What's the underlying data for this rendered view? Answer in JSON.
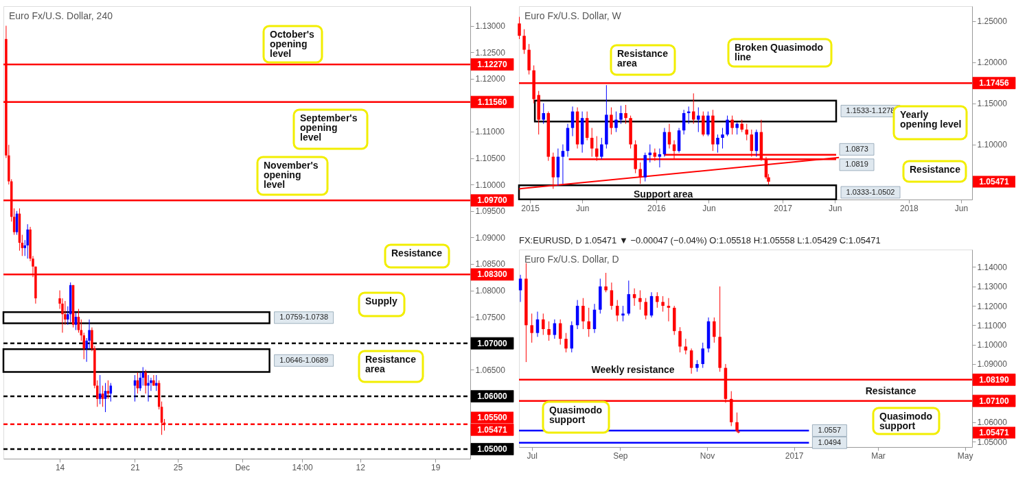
{
  "chart_data": [
    {
      "type": "candlestick",
      "title": "Euro Fx/U.S. Dollar, 240",
      "x": [
        "2016-11-09T00:00",
        "2016-11-09T06:00",
        "2016-11-09T12:00",
        "2016-11-09T18:00",
        "2016-11-10T00:00",
        "2016-11-10T06:00",
        "2016-11-10T12:00",
        "2016-11-10T18:00",
        "2016-11-11T00:00",
        "2016-11-11T06:00",
        "2016-11-11T12:00",
        "2016-11-11T18:00",
        "2016-11-14T00:00",
        "2016-11-14T06:00",
        "2016-11-14T12:00",
        "2016-11-14T18:00",
        "2016-11-15T00:00",
        "2016-11-15T06:00",
        "2016-11-15T12:00",
        "2016-11-15T18:00",
        "2016-11-16T00:00",
        "2016-11-16T06:00",
        "2016-11-16T12:00",
        "2016-11-16T18:00",
        "2016-11-17T00:00",
        "2016-11-17T06:00",
        "2016-11-17T12:00",
        "2016-11-17T18:00",
        "2016-11-18T00:00",
        "2016-11-18T06:00",
        "2016-11-18T12:00",
        "2016-11-18T18:00",
        "2016-11-21T00:00",
        "2016-11-21T06:00",
        "2016-11-21T12:00",
        "2016-11-21T18:00",
        "2016-11-22T00:00",
        "2016-11-22T06:00",
        "2016-11-22T12:00",
        "2016-11-22T18:00",
        "2016-11-23T00:00",
        "2016-11-23T06:00",
        "2016-11-23T12:00",
        "2016-11-23T18:00"
      ],
      "ohlc": [
        [
          1.1275,
          1.13,
          1.105,
          1.1055
        ],
        [
          1.1055,
          1.1075,
          1.1,
          1.1006
        ],
        [
          1.1006,
          1.101,
          1.093,
          1.0939
        ],
        [
          1.0939,
          1.0955,
          1.0905,
          1.091
        ],
        [
          1.091,
          1.095,
          1.0905,
          1.0945
        ],
        [
          1.0945,
          1.0955,
          1.0875,
          1.089
        ],
        [
          1.089,
          1.0905,
          1.0865,
          1.088
        ],
        [
          1.088,
          1.0895,
          1.0865,
          1.0885
        ],
        [
          1.0885,
          1.0925,
          1.086,
          1.0915
        ],
        [
          1.0915,
          1.092,
          1.0855,
          1.086
        ],
        [
          1.086,
          1.0865,
          1.0825,
          1.0845
        ],
        [
          1.0845,
          1.0845,
          1.0775,
          1.0785
        ],
        [
          1.0785,
          1.08,
          1.0765,
          1.0775
        ],
        [
          1.0775,
          1.0785,
          1.072,
          1.0755
        ],
        [
          1.0755,
          1.078,
          1.0735,
          1.0745
        ],
        [
          1.0745,
          1.077,
          1.0735,
          1.0755
        ],
        [
          1.0755,
          1.0815,
          1.074,
          1.081
        ],
        [
          1.081,
          1.081,
          1.073,
          1.0735
        ],
        [
          1.0735,
          1.0758,
          1.0725,
          1.075
        ],
        [
          1.075,
          1.0765,
          1.072,
          1.0725
        ],
        [
          1.0725,
          1.0745,
          1.0705,
          1.0715
        ],
        [
          1.0715,
          1.072,
          1.067,
          1.069
        ],
        [
          1.069,
          1.071,
          1.0665,
          1.0705
        ],
        [
          1.0705,
          1.0745,
          1.069,
          1.0725
        ],
        [
          1.0725,
          1.073,
          1.0685,
          1.069
        ],
        [
          1.069,
          1.0695,
          1.0615,
          1.062
        ],
        [
          1.062,
          1.063,
          1.058,
          1.0595
        ],
        [
          1.0595,
          1.064,
          1.0585,
          1.0605
        ],
        [
          1.0605,
          1.062,
          1.058,
          1.0595
        ],
        [
          1.0595,
          1.0625,
          1.057,
          1.061
        ],
        [
          1.061,
          1.063,
          1.0595,
          1.0605
        ],
        [
          1.0605,
          1.0625,
          1.059,
          1.062
        ],
        [
          1.062,
          1.064,
          1.059,
          1.063
        ],
        [
          1.063,
          1.0645,
          1.0605,
          1.0615
        ],
        [
          1.0615,
          1.0645,
          1.061,
          1.0635
        ],
        [
          1.0635,
          1.0655,
          1.062,
          1.0645
        ],
        [
          1.0645,
          1.065,
          1.0605,
          1.062
        ],
        [
          1.062,
          1.064,
          1.059,
          1.0625
        ],
        [
          1.0625,
          1.0635,
          1.061,
          1.063
        ],
        [
          1.063,
          1.064,
          1.062,
          1.062
        ],
        [
          1.062,
          1.064,
          1.061,
          1.0625
        ],
        [
          1.0625,
          1.063,
          1.0575,
          1.058
        ],
        [
          1.058,
          1.059,
          1.0527,
          1.055
        ],
        [
          1.055,
          1.0557,
          1.0535,
          1.0547
        ]
      ],
      "xlim": [
        "2016-11-08T18:00",
        "2016-12-22T06:00"
      ],
      "ylim": [
        1.0482,
        1.1337
      ],
      "xticks": [
        {
          "value": "2016-11-14",
          "label": "14"
        },
        {
          "value": "2016-11-21",
          "label": "21"
        },
        {
          "value": "2016-11-25",
          "label": "25"
        },
        {
          "value": "2016-12-01",
          "label": "Dec"
        },
        {
          "value": "2016-12-06T14:00",
          "label": "14:00"
        },
        {
          "value": "2016-12-12",
          "label": "12"
        },
        {
          "value": "2016-12-19",
          "label": "19"
        }
      ],
      "yticks": [
        {
          "value": 1.13,
          "label": "1.13000"
        },
        {
          "value": 1.125,
          "label": "1.12500"
        },
        {
          "value": 1.12,
          "label": "1.12000"
        },
        {
          "value": 1.11,
          "label": "1.11000"
        },
        {
          "value": 1.105,
          "label": "1.10500"
        },
        {
          "value": 1.1,
          "label": "1.10000"
        },
        {
          "value": 1.095,
          "label": "1.09500"
        },
        {
          "value": 1.09,
          "label": "1.09000"
        },
        {
          "value": 1.085,
          "label": "1.08500"
        },
        {
          "value": 1.08,
          "label": "1.08000"
        },
        {
          "value": 1.075,
          "label": "1.07500"
        },
        {
          "value": 1.065,
          "label": "1.06500"
        }
      ],
      "ref_lines": [
        {
          "axis": "y",
          "value": 1.1227,
          "label": "1.12270",
          "color": "#ff0000",
          "line_style": "solid"
        },
        {
          "axis": "y",
          "value": 1.1156,
          "label": "1.11560",
          "color": "#ff0000",
          "line_style": "solid"
        },
        {
          "axis": "y",
          "value": 1.097,
          "label": "1.09700",
          "color": "#ff0000",
          "line_style": "solid"
        },
        {
          "axis": "y",
          "value": 1.083,
          "label": "1.08300",
          "color": "#ff0000",
          "line_style": "solid"
        },
        {
          "axis": "y",
          "value": 1.07,
          "label": "1.07000",
          "color": "#000000",
          "line_style": "dashed"
        },
        {
          "axis": "y",
          "value": 1.06,
          "label": "1.06000",
          "color": "#000000",
          "line_style": "dashed"
        },
        {
          "axis": "y",
          "value": 1.05471,
          "label": "1.05471",
          "color": "#ff0000",
          "line_style": "dashed"
        },
        {
          "axis": "y",
          "value": 1.05,
          "label": "1.05000",
          "color": "#000000",
          "line_style": "dashed"
        }
      ],
      "bands": [
        {
          "axis": "y",
          "from": 1.0738,
          "to": 1.0759,
          "label": "1.0759-1.0738",
          "color": "#000000"
        },
        {
          "axis": "y",
          "from": 1.0646,
          "to": 1.0689,
          "label": "1.0646-1.0689",
          "color": "#000000"
        }
      ],
      "annotations": [
        "October's opening level",
        "September's opening level",
        "November's opening level",
        "Resistance",
        "Supply",
        "Resistance area",
        "1.05500"
      ]
    },
    {
      "type": "candlestick",
      "title": "Euro Fx/U.S. Dollar, W",
      "x": [
        "2014-12-01",
        "2014-12-15",
        "2014-12-29",
        "2015-01-12",
        "2015-01-26",
        "2015-02-09",
        "2015-02-23",
        "2015-03-09",
        "2015-03-23",
        "2015-04-06",
        "2015-04-20",
        "2015-05-04",
        "2015-05-18",
        "2015-06-01",
        "2015-06-15",
        "2015-06-29",
        "2015-07-13",
        "2015-07-27",
        "2015-08-10",
        "2015-08-24",
        "2015-09-07",
        "2015-09-21",
        "2015-10-05",
        "2015-10-19",
        "2015-11-02",
        "2015-11-16",
        "2015-11-30",
        "2015-12-14",
        "2015-12-28",
        "2016-01-11",
        "2016-01-25",
        "2016-02-08",
        "2016-02-22",
        "2016-03-07",
        "2016-03-21",
        "2016-04-04",
        "2016-04-18",
        "2016-05-02",
        "2016-05-16",
        "2016-05-30",
        "2016-06-13",
        "2016-06-27",
        "2016-07-11",
        "2016-07-25",
        "2016-08-08",
        "2016-08-22",
        "2016-09-05",
        "2016-09-19",
        "2016-10-03",
        "2016-10-17",
        "2016-10-31",
        "2016-11-14",
        "2016-11-21"
      ],
      "ohlc": [
        [
          1.247,
          1.255,
          1.228,
          1.232
        ],
        [
          1.232,
          1.24,
          1.21,
          1.215
        ],
        [
          1.215,
          1.222,
          1.185,
          1.19
        ],
        [
          1.19,
          1.196,
          1.15,
          1.155
        ],
        [
          1.16,
          1.165,
          1.112,
          1.13
        ],
        [
          1.13,
          1.15,
          1.125,
          1.138
        ],
        [
          1.138,
          1.14,
          1.08,
          1.085
        ],
        [
          1.085,
          1.09,
          1.046,
          1.06
        ],
        [
          1.06,
          1.095,
          1.05,
          1.085
        ],
        [
          1.085,
          1.1,
          1.052,
          1.092
        ],
        [
          1.092,
          1.125,
          1.085,
          1.12
        ],
        [
          1.12,
          1.146,
          1.11,
          1.14
        ],
        [
          1.14,
          1.145,
          1.095,
          1.1
        ],
        [
          1.1,
          1.14,
          1.09,
          1.132
        ],
        [
          1.132,
          1.14,
          1.105,
          1.108
        ],
        [
          1.108,
          1.12,
          1.085,
          1.095
        ],
        [
          1.095,
          1.11,
          1.08,
          1.085
        ],
        [
          1.085,
          1.108,
          1.082,
          1.1
        ],
        [
          1.1,
          1.172,
          1.095,
          1.136
        ],
        [
          1.136,
          1.145,
          1.112,
          1.12
        ],
        [
          1.12,
          1.14,
          1.115,
          1.13
        ],
        [
          1.13,
          1.147,
          1.125,
          1.138
        ],
        [
          1.138,
          1.148,
          1.125,
          1.132
        ],
        [
          1.132,
          1.135,
          1.095,
          1.1
        ],
        [
          1.1,
          1.105,
          1.065,
          1.07
        ],
        [
          1.07,
          1.078,
          1.052,
          1.06
        ],
        [
          1.06,
          1.09,
          1.055,
          1.087
        ],
        [
          1.087,
          1.1,
          1.078,
          1.09
        ],
        [
          1.09,
          1.095,
          1.08,
          1.085
        ],
        [
          1.085,
          1.095,
          1.072,
          1.088
        ],
        [
          1.088,
          1.12,
          1.085,
          1.115
        ],
        [
          1.115,
          1.125,
          1.095,
          1.1
        ],
        [
          1.1,
          1.105,
          1.082,
          1.092
        ],
        [
          1.092,
          1.12,
          1.09,
          1.117
        ],
        [
          1.117,
          1.142,
          1.112,
          1.138
        ],
        [
          1.138,
          1.146,
          1.125,
          1.14
        ],
        [
          1.14,
          1.162,
          1.125,
          1.13
        ],
        [
          1.13,
          1.145,
          1.115,
          1.135
        ],
        [
          1.135,
          1.14,
          1.11,
          1.112
        ],
        [
          1.112,
          1.14,
          1.11,
          1.135
        ],
        [
          1.135,
          1.142,
          1.092,
          1.1
        ],
        [
          1.1,
          1.112,
          1.09,
          1.108
        ],
        [
          1.108,
          1.12,
          1.095,
          1.112
        ],
        [
          1.112,
          1.135,
          1.11,
          1.13
        ],
        [
          1.13,
          1.135,
          1.112,
          1.12
        ],
        [
          1.12,
          1.127,
          1.112,
          1.125
        ],
        [
          1.125,
          1.13,
          1.115,
          1.118
        ],
        [
          1.118,
          1.125,
          1.105,
          1.112
        ],
        [
          1.112,
          1.118,
          1.085,
          1.092
        ],
        [
          1.092,
          1.118,
          1.085,
          1.115
        ],
        [
          1.115,
          1.13,
          1.08,
          1.083
        ],
        [
          1.083,
          1.085,
          1.058,
          1.06
        ],
        [
          1.06,
          1.064,
          1.051,
          1.0547
        ]
      ],
      "xlim": [
        "2014-11-30",
        "2018-07-03"
      ],
      "ylim": [
        1.033,
        1.268
      ],
      "xticks": [
        {
          "value": "2015-01-01",
          "label": "2015"
        },
        {
          "value": "2015-06-01",
          "label": "Jun"
        },
        {
          "value": "2016-01-01",
          "label": "2016"
        },
        {
          "value": "2016-06-01",
          "label": "Jun"
        },
        {
          "value": "2017-01-01",
          "label": "2017"
        },
        {
          "value": "2017-06-01",
          "label": "Jun"
        },
        {
          "value": "2018-01-01",
          "label": "2018"
        },
        {
          "value": "2018-06-01",
          "label": "Jun"
        }
      ],
      "yticks": [
        {
          "value": 1.1,
          "label": "1.10000"
        },
        {
          "value": 1.15,
          "label": "1.15000"
        },
        {
          "value": 1.2,
          "label": "1.20000"
        },
        {
          "value": 1.25,
          "label": "1.25000"
        }
      ],
      "series": [
        {
          "type": "line",
          "color": "#ff0000",
          "x": [
            "2014-11-30",
            "2017-06-13"
          ],
          "values": [
            1.046,
            1.084
          ]
        }
      ],
      "ref_lines": [
        {
          "axis": "y",
          "value": 1.17456,
          "label": "1.17456",
          "color": "#ff0000",
          "line_style": "solid"
        },
        {
          "axis": "y",
          "value": 1.0873,
          "label": "1.0873",
          "color": "#ff0000",
          "line_style": "solid"
        },
        {
          "axis": "y",
          "value": 1.0819,
          "label": "1.0819",
          "color": "#ff0000",
          "line_style": "solid"
        }
      ],
      "bands": [
        {
          "axis": "y",
          "from": 1.1278,
          "to": 1.1533,
          "label": "1.1533-1.1278",
          "color": "#000000"
        },
        {
          "axis": "y",
          "from": 1.0333,
          "to": 1.0502,
          "label": "1.0333-1.0502",
          "color": "#000000"
        }
      ],
      "annotations": [
        "Resistance area",
        "Broken Quasimodo line",
        "Yearly opening level",
        "Resistance",
        "Support area",
        "1.05471"
      ]
    },
    {
      "type": "candlestick",
      "title": "Euro Fx/U.S. Dollar, D",
      "subtitle": "FX:EURUSD, D  1.05471 ▼ −0.00047 (−0.04%)  O:1.05518  H:1.05558  L:1.05429  C:1.05471",
      "x": [
        "2016-06-23",
        "2016-06-27",
        "2016-07-01",
        "2016-07-05",
        "2016-07-09",
        "2016-07-13",
        "2016-07-17",
        "2016-07-21",
        "2016-07-25",
        "2016-07-29",
        "2016-08-02",
        "2016-08-06",
        "2016-08-10",
        "2016-08-14",
        "2016-08-18",
        "2016-08-22",
        "2016-08-26",
        "2016-08-30",
        "2016-09-03",
        "2016-09-07",
        "2016-09-11",
        "2016-09-15",
        "2016-09-19",
        "2016-09-23",
        "2016-09-27",
        "2016-10-01",
        "2016-10-05",
        "2016-10-09",
        "2016-10-13",
        "2016-10-17",
        "2016-10-21",
        "2016-10-25",
        "2016-10-29",
        "2016-11-02",
        "2016-11-06",
        "2016-11-10",
        "2016-11-14",
        "2016-11-18",
        "2016-11-22",
        "2016-11-23"
      ],
      "ohlc": [
        [
          1.128,
          1.136,
          1.122,
          1.134
        ],
        [
          1.134,
          1.142,
          1.091,
          1.11
        ],
        [
          1.11,
          1.116,
          1.101,
          1.106
        ],
        [
          1.106,
          1.117,
          1.104,
          1.113
        ],
        [
          1.113,
          1.116,
          1.105,
          1.108
        ],
        [
          1.108,
          1.112,
          1.102,
          1.105
        ],
        [
          1.105,
          1.113,
          1.103,
          1.111
        ],
        [
          1.111,
          1.113,
          1.1,
          1.103
        ],
        [
          1.103,
          1.106,
          1.096,
          1.098
        ],
        [
          1.098,
          1.112,
          1.096,
          1.11
        ],
        [
          1.11,
          1.123,
          1.108,
          1.12
        ],
        [
          1.12,
          1.124,
          1.108,
          1.112
        ],
        [
          1.112,
          1.119,
          1.104,
          1.108
        ],
        [
          1.108,
          1.121,
          1.106,
          1.118
        ],
        [
          1.118,
          1.134,
          1.116,
          1.13
        ],
        [
          1.13,
          1.137,
          1.127,
          1.128
        ],
        [
          1.128,
          1.132,
          1.118,
          1.12
        ],
        [
          1.12,
          1.123,
          1.112,
          1.115
        ],
        [
          1.115,
          1.12,
          1.112,
          1.116
        ],
        [
          1.116,
          1.133,
          1.115,
          1.126
        ],
        [
          1.126,
          1.129,
          1.12,
          1.124
        ],
        [
          1.124,
          1.128,
          1.118,
          1.122
        ],
        [
          1.122,
          1.124,
          1.113,
          1.115
        ],
        [
          1.115,
          1.127,
          1.114,
          1.125
        ],
        [
          1.125,
          1.127,
          1.119,
          1.122
        ],
        [
          1.122,
          1.125,
          1.117,
          1.12
        ],
        [
          1.12,
          1.124,
          1.112,
          1.119
        ],
        [
          1.119,
          1.12,
          1.105,
          1.107
        ],
        [
          1.107,
          1.109,
          1.096,
          1.099
        ],
        [
          1.099,
          1.103,
          1.095,
          1.097
        ],
        [
          1.097,
          1.098,
          1.085,
          1.088
        ],
        [
          1.088,
          1.092,
          1.086,
          1.09
        ],
        [
          1.09,
          1.101,
          1.088,
          1.098
        ],
        [
          1.098,
          1.114,
          1.096,
          1.112
        ],
        [
          1.112,
          1.114,
          1.101,
          1.104
        ],
        [
          1.104,
          1.13,
          1.086,
          1.088
        ],
        [
          1.088,
          1.09,
          1.07,
          1.072
        ],
        [
          1.072,
          1.076,
          1.058,
          1.06
        ],
        [
          1.06,
          1.065,
          1.055,
          1.0555
        ],
        [
          1.05518,
          1.05558,
          1.05429,
          1.05471
        ]
      ],
      "xlim": [
        "2016-06-22",
        "2017-05-06"
      ],
      "ylim": [
        1.0472,
        1.149
      ],
      "xticks": [
        {
          "value": "2016-07-01",
          "label": "Jul"
        },
        {
          "value": "2016-09-01",
          "label": "Sep"
        },
        {
          "value": "2016-11-01",
          "label": "Nov"
        },
        {
          "value": "2017-01-01",
          "label": "2017"
        },
        {
          "value": "2017-03-01",
          "label": "Mar"
        },
        {
          "value": "2017-05-01",
          "label": "May"
        }
      ],
      "yticks": [
        {
          "value": 1.05,
          "label": "1.05000"
        },
        {
          "value": 1.06,
          "label": "1.06000"
        },
        {
          "value": 1.09,
          "label": "1.09000"
        },
        {
          "value": 1.1,
          "label": "1.10000"
        },
        {
          "value": 1.11,
          "label": "1.11000"
        },
        {
          "value": 1.12,
          "label": "1.12000"
        },
        {
          "value": 1.13,
          "label": "1.13000"
        },
        {
          "value": 1.14,
          "label": "1.14000"
        }
      ],
      "ref_lines": [
        {
          "axis": "y",
          "value": 1.0819,
          "label": "1.08190",
          "color": "#ff0000",
          "line_style": "solid"
        },
        {
          "axis": "y",
          "value": 1.071,
          "label": "1.07100",
          "color": "#ff0000",
          "line_style": "solid"
        },
        {
          "axis": "y",
          "value": 1.0557,
          "label": "1.0557",
          "color": "#0000ff",
          "line_style": "solid"
        },
        {
          "axis": "y",
          "value": 1.0494,
          "label": "1.0494",
          "color": "#0000ff",
          "line_style": "solid"
        }
      ],
      "annotations": [
        {
          "text": "Weekly resistance",
          "x": "2016-09-10",
          "y": 1.0819
        },
        {
          "text": "Resistance",
          "x": "2017-03-10",
          "y": 1.071
        },
        "Quasimodo support",
        "Quasimodo support",
        "1.05471"
      ]
    }
  ]
}
